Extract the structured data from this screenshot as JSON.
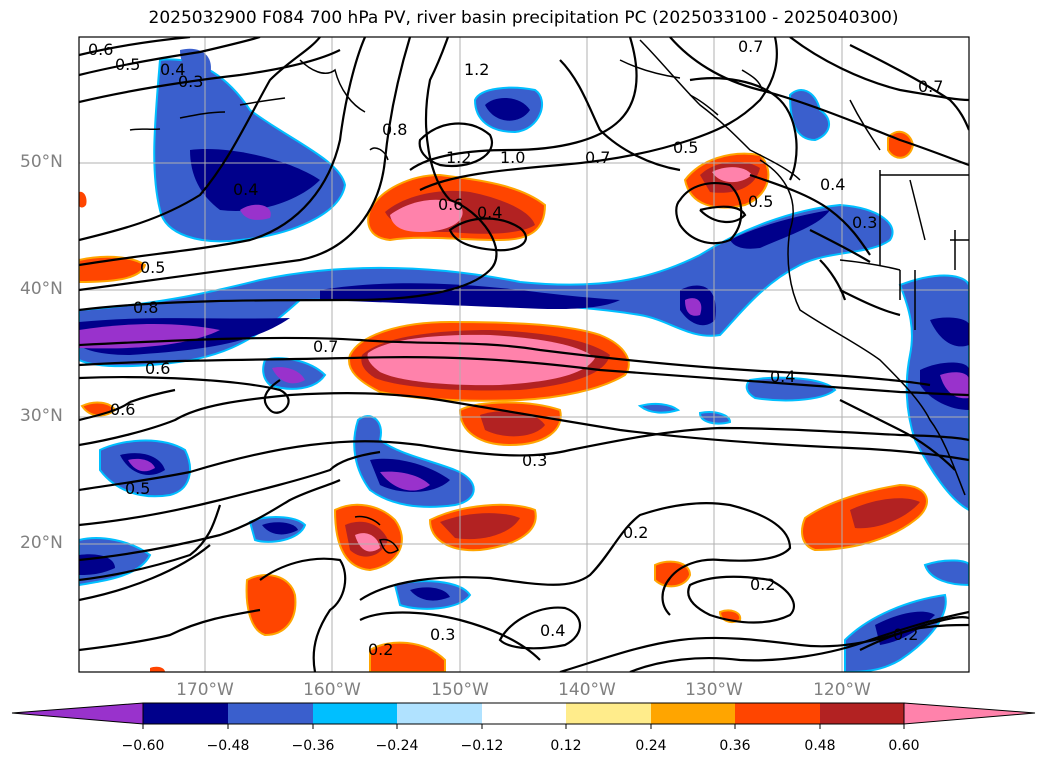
{
  "title": "2025032900 F084 700 hPa PV, river basin precipitation PC (2025033100 - 2025040300)",
  "lat_labels": [
    "50°N",
    "40°N",
    "30°N",
    "20°N"
  ],
  "lon_labels": [
    "170°W",
    "160°W",
    "150°W",
    "140°W",
    "130°W",
    "120°W"
  ],
  "colorbar": {
    "ticks": [
      "−0.60",
      "−0.48",
      "−0.36",
      "−0.24",
      "−0.12",
      "0.12",
      "0.24",
      "0.36",
      "0.48",
      "0.60"
    ],
    "colors": [
      "#9932cc",
      "#00008b",
      "#3a5fcd",
      "#00bfff",
      "#b0e2ff",
      "#ffffff",
      "#ffec8b",
      "#ffa500",
      "#ff4500",
      "#b22222",
      "#ff82ab"
    ]
  },
  "contour_labels": [
    "0.6",
    "0.5",
    "0.4",
    "0.3",
    "1.2",
    "0.7",
    "0.7",
    "0.8",
    "1.2",
    "1.0",
    "0.7",
    "0.5",
    "0.4",
    "0.6",
    "0.4",
    "0.4",
    "0.5",
    "0.3",
    "0.5",
    "0.8",
    "0.7",
    "0.6",
    "0.4",
    "0.6",
    "0.3",
    "0.5",
    "0.2",
    "0.2",
    "0.3",
    "0.4",
    "0.2",
    "0.2"
  ]
}
